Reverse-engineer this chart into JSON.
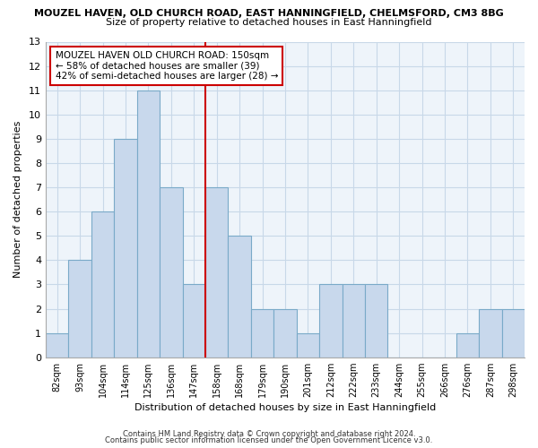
{
  "title_line1": "MOUZEL HAVEN, OLD CHURCH ROAD, EAST HANNINGFIELD, CHELMSFORD, CM3 8BG",
  "title_line2": "Size of property relative to detached houses in East Hanningfield",
  "xlabel": "Distribution of detached houses by size in East Hanningfield",
  "ylabel": "Number of detached properties",
  "bar_labels": [
    "82sqm",
    "93sqm",
    "104sqm",
    "114sqm",
    "125sqm",
    "136sqm",
    "147sqm",
    "158sqm",
    "168sqm",
    "179sqm",
    "190sqm",
    "201sqm",
    "212sqm",
    "222sqm",
    "233sqm",
    "244sqm",
    "255sqm",
    "266sqm",
    "276sqm",
    "287sqm",
    "298sqm"
  ],
  "bar_values": [
    1,
    4,
    6,
    9,
    11,
    7,
    3,
    7,
    5,
    2,
    2,
    1,
    3,
    3,
    3,
    0,
    0,
    0,
    1,
    2,
    2
  ],
  "bar_color": "#c8d8ec",
  "bar_edge_color": "#7aaac8",
  "highlight_color": "#cc0000",
  "vline_index": 7,
  "ylim": [
    0,
    13
  ],
  "yticks": [
    0,
    1,
    2,
    3,
    4,
    5,
    6,
    7,
    8,
    9,
    10,
    11,
    12,
    13
  ],
  "annotation_text": "MOUZEL HAVEN OLD CHURCH ROAD: 150sqm\n← 58% of detached houses are smaller (39)\n42% of semi-detached houses are larger (28) →",
  "annotation_box_color": "#ffffff",
  "annotation_box_edge": "#cc0000",
  "footer1": "Contains HM Land Registry data © Crown copyright and database right 2024.",
  "footer2": "Contains public sector information licensed under the Open Government Licence v3.0.",
  "background_color": "#ffffff",
  "plot_bg_color": "#eef4fa",
  "grid_color": "#c8d8e8"
}
